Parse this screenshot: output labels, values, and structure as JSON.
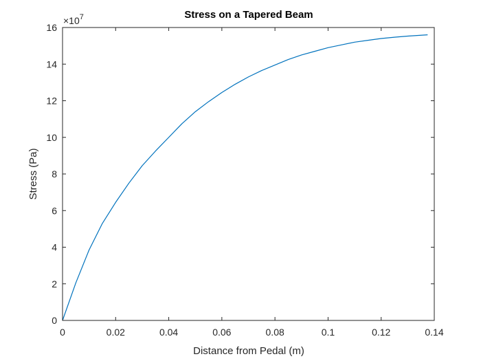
{
  "chart_data": {
    "type": "line",
    "title": "Stress on a Tapered Beam",
    "xlabel": "Distance from Pedal (m)",
    "ylabel": "Stress (Pa)",
    "y_multiplier_prefix": "×10",
    "y_multiplier_exponent": "7",
    "xlim": [
      0,
      0.14
    ],
    "ylim": [
      0,
      16
    ],
    "x_ticks": [
      0,
      0.02,
      0.04,
      0.06,
      0.08,
      0.1,
      0.12,
      0.14
    ],
    "x_tick_labels": [
      "0",
      "0.02",
      "0.04",
      "0.06",
      "0.08",
      "0.1",
      "0.12",
      "0.14"
    ],
    "y_ticks": [
      0,
      2,
      4,
      6,
      8,
      10,
      12,
      14,
      16
    ],
    "y_tick_labels": [
      "0",
      "2",
      "4",
      "6",
      "8",
      "10",
      "12",
      "14",
      "16"
    ],
    "grid": false,
    "line_color": "#0072BD",
    "series": [
      {
        "x": [
          0,
          0.005,
          0.01,
          0.015,
          0.02,
          0.025,
          0.03,
          0.035,
          0.04,
          0.045,
          0.05,
          0.055,
          0.06,
          0.065,
          0.07,
          0.075,
          0.08,
          0.085,
          0.09,
          0.095,
          0.1,
          0.105,
          0.11,
          0.115,
          0.12,
          0.125,
          0.13,
          0.1375
        ],
        "values": [
          0,
          2.05,
          3.85,
          5.3,
          6.45,
          7.5,
          8.45,
          9.25,
          10.0,
          10.75,
          11.4,
          11.95,
          12.45,
          12.9,
          13.3,
          13.65,
          13.95,
          14.25,
          14.5,
          14.7,
          14.9,
          15.05,
          15.2,
          15.3,
          15.4,
          15.47,
          15.53,
          15.6
        ]
      }
    ]
  }
}
